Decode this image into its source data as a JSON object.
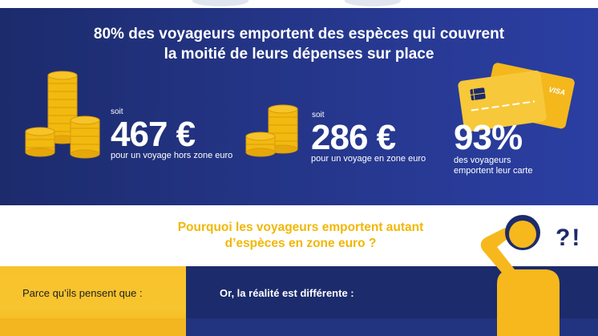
{
  "headline": {
    "line1": "80% des voyageurs emportent des espèces qui couvrent",
    "line2": "la moitié de leurs dépenses sur place"
  },
  "stat_hors_zone": {
    "prefix": "soit",
    "amount": "467 €",
    "caption": "pour un voyage hors zone euro"
  },
  "stat_zone": {
    "prefix": "soit",
    "amount": "286 €",
    "caption": "pour un voyage en zone euro"
  },
  "stat_carte": {
    "percent": "93%",
    "caption_line1": "des voyageurs",
    "caption_line2": "emportent leur carte"
  },
  "card": {
    "brand": "VISA"
  },
  "question": {
    "line1": "Pourquoi  les voyageurs emportent autant",
    "line2": "d’espèces en zone euro  ?"
  },
  "question_marks": "?!",
  "left_panel": {
    "label": "Parce qu’ils pensent que :"
  },
  "right_panel": {
    "label": "Or, la réalité est différente :"
  },
  "colors": {
    "navy": "#1c2b6c",
    "royal_blue": "#2b3fa3",
    "gold": "#f2b705",
    "coin": "#f6c429",
    "white": "#ffffff"
  },
  "icons": [
    "coin-stack-icon",
    "credit-card-icon",
    "thinking-person-icon"
  ]
}
